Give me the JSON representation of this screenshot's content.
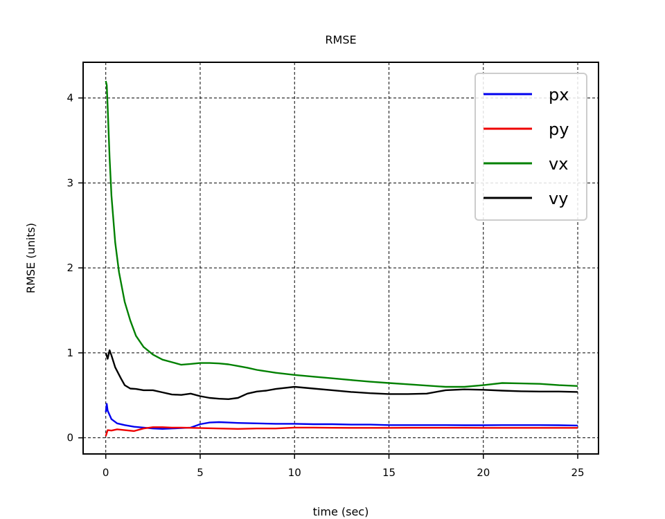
{
  "chart_data": {
    "type": "line",
    "title": "RMSE",
    "xlabel": "time (sec)",
    "ylabel": "RMSE (units)",
    "xlim": [
      -1.2,
      26.1
    ],
    "ylim": [
      -0.19,
      4.42
    ],
    "xticks": [
      0,
      5,
      10,
      15,
      20,
      25
    ],
    "yticks": [
      0,
      1,
      2,
      3,
      4
    ],
    "grid": true,
    "legend": "top-right",
    "series": [
      {
        "name": "px",
        "color": "#0000ee",
        "x": [
          0,
          0.05,
          0.1,
          0.3,
          0.6,
          1,
          1.5,
          2,
          2.5,
          3,
          3.5,
          4,
          4.5,
          5,
          5.5,
          6,
          6.5,
          7,
          8,
          9,
          10,
          11,
          12,
          13,
          14,
          15,
          16,
          17,
          18,
          19,
          20,
          21,
          22,
          23,
          24,
          25
        ],
        "y": [
          0.3,
          0.4,
          0.32,
          0.22,
          0.17,
          0.15,
          0.13,
          0.12,
          0.11,
          0.105,
          0.11,
          0.115,
          0.12,
          0.16,
          0.18,
          0.185,
          0.18,
          0.175,
          0.17,
          0.165,
          0.165,
          0.16,
          0.16,
          0.155,
          0.155,
          0.15,
          0.15,
          0.15,
          0.15,
          0.148,
          0.148,
          0.15,
          0.15,
          0.15,
          0.148,
          0.145
        ]
      },
      {
        "name": "py",
        "color": "#ee0000",
        "x": [
          0,
          0.1,
          0.3,
          0.6,
          1,
          1.5,
          2,
          2.5,
          3,
          3.5,
          4,
          5,
          6,
          7,
          8,
          9,
          10,
          11,
          12,
          13,
          14,
          15,
          16,
          17,
          18,
          19,
          20,
          21,
          22,
          23,
          24,
          25
        ],
        "y": [
          0.02,
          0.09,
          0.085,
          0.1,
          0.09,
          0.08,
          0.11,
          0.125,
          0.125,
          0.12,
          0.12,
          0.115,
          0.11,
          0.105,
          0.11,
          0.11,
          0.12,
          0.12,
          0.118,
          0.117,
          0.117,
          0.117,
          0.118,
          0.118,
          0.118,
          0.118,
          0.117,
          0.117,
          0.117,
          0.117,
          0.117,
          0.117
        ]
      },
      {
        "name": "vx",
        "color": "#008000",
        "x": [
          0,
          0.05,
          0.1,
          0.2,
          0.3,
          0.5,
          0.7,
          1,
          1.3,
          1.6,
          2,
          2.5,
          3,
          3.5,
          4,
          4.5,
          5,
          5.5,
          6,
          6.5,
          7,
          7.5,
          8,
          9,
          10,
          11,
          12,
          13,
          14,
          15,
          16,
          17,
          18,
          19,
          20,
          21,
          22,
          23,
          24,
          25
        ],
        "y": [
          4.2,
          4.15,
          3.9,
          3.3,
          2.85,
          2.3,
          1.95,
          1.6,
          1.38,
          1.2,
          1.07,
          0.98,
          0.92,
          0.89,
          0.86,
          0.87,
          0.88,
          0.88,
          0.875,
          0.865,
          0.845,
          0.825,
          0.8,
          0.765,
          0.74,
          0.72,
          0.7,
          0.68,
          0.66,
          0.645,
          0.63,
          0.615,
          0.6,
          0.6,
          0.62,
          0.645,
          0.64,
          0.635,
          0.62,
          0.61
        ]
      },
      {
        "name": "vy",
        "color": "#000000",
        "x": [
          0,
          0.1,
          0.2,
          0.3,
          0.5,
          0.8,
          1,
          1.3,
          1.6,
          2,
          2.5,
          3,
          3.5,
          4,
          4.5,
          5,
          5.5,
          6,
          6.5,
          7,
          7.5,
          8,
          8.5,
          9,
          10,
          11,
          12,
          13,
          14,
          15,
          16,
          17,
          18,
          19,
          20,
          21,
          22,
          23,
          24,
          25
        ],
        "y": [
          1.0,
          0.93,
          1.03,
          0.97,
          0.83,
          0.7,
          0.62,
          0.58,
          0.575,
          0.56,
          0.56,
          0.535,
          0.51,
          0.505,
          0.52,
          0.49,
          0.47,
          0.46,
          0.455,
          0.47,
          0.52,
          0.545,
          0.555,
          0.575,
          0.6,
          0.58,
          0.56,
          0.54,
          0.525,
          0.515,
          0.515,
          0.52,
          0.56,
          0.57,
          0.565,
          0.555,
          0.548,
          0.545,
          0.545,
          0.54
        ]
      }
    ]
  }
}
